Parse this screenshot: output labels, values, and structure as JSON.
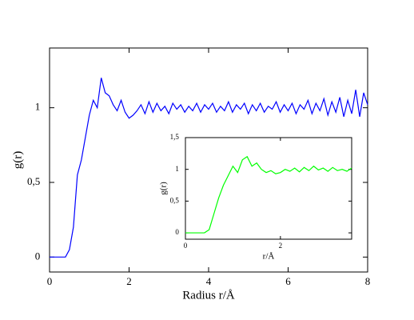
{
  "chart_data": [
    {
      "type": "line",
      "xlabel": "Radius r/Å",
      "ylabel": "g(r)",
      "xlim": [
        0,
        8
      ],
      "ylim": [
        -0.1,
        1.4
      ],
      "xticks": [
        0,
        2,
        4,
        6,
        8
      ],
      "yticks": [
        0,
        {
          "value": 0.5,
          "label": "0,5"
        },
        1
      ],
      "series": [
        {
          "color": "#0000ff",
          "x": [
            0,
            0.1,
            0.2,
            0.3,
            0.4,
            0.5,
            0.6,
            0.7,
            0.8,
            0.9,
            1,
            1.1,
            1.2,
            1.3,
            1.4,
            1.5,
            1.6,
            1.7,
            1.8,
            1.9,
            2,
            2.1,
            2.2,
            2.3,
            2.4,
            2.5,
            2.6,
            2.7,
            2.8,
            2.9,
            3,
            3.1,
            3.2,
            3.3,
            3.4,
            3.5,
            3.6,
            3.7,
            3.8,
            3.9,
            4,
            4.1,
            4.2,
            4.3,
            4.4,
            4.5,
            4.6,
            4.7,
            4.8,
            4.9,
            5,
            5.1,
            5.2,
            5.3,
            5.4,
            5.5,
            5.6,
            5.7,
            5.8,
            5.9,
            6,
            6.1,
            6.2,
            6.3,
            6.4,
            6.5,
            6.6,
            6.7,
            6.8,
            6.9,
            7,
            7.1,
            7.2,
            7.3,
            7.4,
            7.5,
            7.6,
            7.7,
            7.8,
            7.9,
            8
          ],
          "values": [
            0,
            0,
            0,
            0,
            0,
            0.05,
            0.2,
            0.55,
            0.65,
            0.8,
            0.95,
            1.05,
            1.0,
            1.2,
            1.1,
            1.08,
            1.02,
            0.98,
            1.05,
            0.97,
            0.93,
            0.95,
            0.98,
            1.02,
            0.96,
            1.04,
            0.97,
            1.03,
            0.98,
            1.01,
            0.96,
            1.03,
            0.99,
            1.02,
            0.97,
            1.01,
            0.98,
            1.03,
            0.97,
            1.02,
            0.99,
            1.03,
            0.97,
            1.01,
            0.98,
            1.04,
            0.97,
            1.02,
            0.99,
            1.03,
            0.96,
            1.02,
            0.98,
            1.03,
            0.97,
            1.01,
            0.99,
            1.04,
            0.97,
            1.02,
            0.98,
            1.03,
            0.96,
            1.02,
            0.99,
            1.05,
            0.96,
            1.03,
            0.98,
            1.06,
            0.95,
            1.04,
            0.97,
            1.07,
            0.94,
            1.05,
            0.96,
            1.12,
            0.94,
            1.1,
            1.02
          ]
        }
      ]
    },
    {
      "type": "line",
      "xlabel": "r/Å",
      "ylabel": "g(r)",
      "xlim": [
        0,
        3.5
      ],
      "ylim": [
        -0.1,
        1.5
      ],
      "xticks": [
        0,
        2
      ],
      "yticks": [
        0,
        {
          "value": 0.5,
          "label": "0,5"
        },
        1,
        {
          "value": 1.5,
          "label": "1,5"
        }
      ],
      "series": [
        {
          "color": "#00ff00",
          "x": [
            0,
            0.1,
            0.2,
            0.3,
            0.4,
            0.5,
            0.6,
            0.7,
            0.8,
            0.9,
            1,
            1.1,
            1.2,
            1.3,
            1.4,
            1.5,
            1.6,
            1.7,
            1.8,
            1.9,
            2,
            2.1,
            2.2,
            2.3,
            2.4,
            2.5,
            2.6,
            2.7,
            2.8,
            2.9,
            3,
            3.1,
            3.2,
            3.3,
            3.4,
            3.5
          ],
          "values": [
            0,
            0,
            0,
            0,
            0,
            0.05,
            0.3,
            0.55,
            0.75,
            0.9,
            1.05,
            0.95,
            1.15,
            1.2,
            1.05,
            1.1,
            1.0,
            0.95,
            0.98,
            0.93,
            0.95,
            1.0,
            0.97,
            1.02,
            0.96,
            1.03,
            0.98,
            1.05,
            0.99,
            1.02,
            0.97,
            1.03,
            0.98,
            1.0,
            0.97,
            1.02
          ]
        }
      ]
    }
  ]
}
